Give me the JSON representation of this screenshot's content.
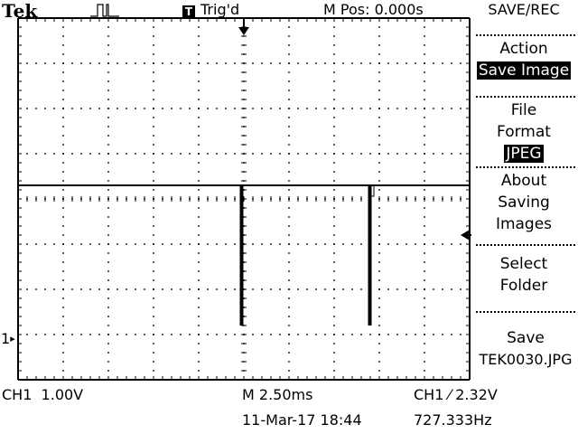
{
  "header": {
    "brand": "Tek",
    "trigger_badge": "T",
    "trigger_status": "Trig'd",
    "position_readout": "M Pos: 0.000s"
  },
  "menu": {
    "title": "SAVE/REC",
    "items": [
      {
        "lines": [
          "Action"
        ],
        "value": "Save Image"
      },
      {
        "lines": [
          "File",
          "Format"
        ],
        "value": "JPEG"
      },
      {
        "lines": [
          "About",
          "Saving",
          "Images"
        ]
      },
      {
        "lines": [
          "Select",
          "Folder"
        ]
      },
      {
        "lines": [
          "Save",
          "TEK0030.JPG"
        ]
      }
    ]
  },
  "footer": {
    "ch1_scale": "CH1  1.00V",
    "timebase": "M 2.50ms",
    "trigger_level": "CH1 ⁄ 2.32V",
    "date_time": "11-Mar-17 18:44",
    "frequency": "727.333Hz"
  },
  "markers": {
    "channel_marker": "1",
    "trigger_position_marker": "↓",
    "trigger_level_marker": "◀"
  },
  "waveform": {
    "time_per_div_ms": 2.5,
    "volts_per_div": 1.0,
    "divisions_x": 10,
    "divisions_y": 8,
    "baseline_div_above_ground": 3.4,
    "pulses": [
      {
        "time_ms_from_trigger": 0.0,
        "depth_div": 3.1
      },
      {
        "time_ms_from_trigger": 7.1,
        "depth_div": 3.1
      }
    ]
  },
  "colors": {
    "background": "#ffffff",
    "foreground": "#000000"
  }
}
